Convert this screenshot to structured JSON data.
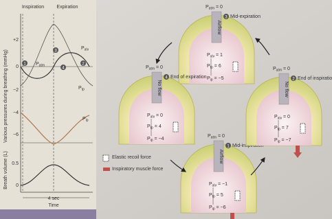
{
  "graph": {
    "phase_labels": [
      "Inspiration",
      "Expiration"
    ],
    "y_label": "Various pressures during breathing (mmHg)",
    "y_ticks": [
      "+2",
      "0",
      "−2",
      "−4",
      "−6"
    ],
    "curve_labels": [
      {
        "p": "P",
        "sub": "alv"
      },
      {
        "p": "P",
        "sub": "tp"
      },
      {
        "p": "P",
        "sub": "ip"
      },
      {
        "p": "P",
        "sub": "atm"
      }
    ],
    "markers": [
      "1",
      "2",
      "3",
      "4"
    ],
    "volume_label": "Breath volume (L)",
    "volume_ticks": [
      "0.5",
      "0"
    ],
    "duration": "4 sec",
    "x_label": "Time"
  },
  "legend": [
    "Elastic recoil force",
    "Inspiratory muscle force"
  ],
  "stages": [
    {
      "step": "3",
      "title": "Mid-expiration",
      "flow": "Airflow",
      "pressures": [
        {
          "p": "P",
          "sub": "atm",
          "eq": " = 0"
        },
        {
          "p": "P",
          "sub": "alv",
          "eq": " = 1"
        },
        {
          "p": "P",
          "sub": "tp",
          "eq": " = 6"
        },
        {
          "p": "P",
          "sub": "ip",
          "eq": " = −5"
        }
      ]
    },
    {
      "step": "4",
      "title": "End of expiration",
      "flow": "No flow",
      "pressures": [
        {
          "p": "P",
          "sub": "atm",
          "eq": " = 0"
        },
        {
          "p": "P",
          "sub": "alv",
          "eq": " = 0"
        },
        {
          "p": "P",
          "sub": "tp",
          "eq": " = 4"
        },
        {
          "p": "P",
          "sub": "ip",
          "eq": " = −4"
        }
      ]
    },
    {
      "step": "1",
      "title": "Mid-inspiration",
      "flow": "Airflow",
      "pressures": [
        {
          "p": "P",
          "sub": "atm",
          "eq": " = 0"
        },
        {
          "p": "P",
          "sub": "alv",
          "eq": " = −1"
        },
        {
          "p": "P",
          "sub": "tp",
          "eq": " = 5"
        },
        {
          "p": "P",
          "sub": "ip",
          "eq": " = −6"
        }
      ]
    },
    {
      "step": "2",
      "title": "End of inspiration",
      "flow": "No flow",
      "pressures": [
        {
          "p": "P",
          "sub": "atm",
          "eq": " = 0"
        },
        {
          "p": "P",
          "sub": "alv",
          "eq": " = 0"
        },
        {
          "p": "P",
          "sub": "tp",
          "eq": " = 7"
        },
        {
          "p": "P",
          "sub": "ip",
          "eq": " = −7"
        }
      ]
    }
  ]
}
